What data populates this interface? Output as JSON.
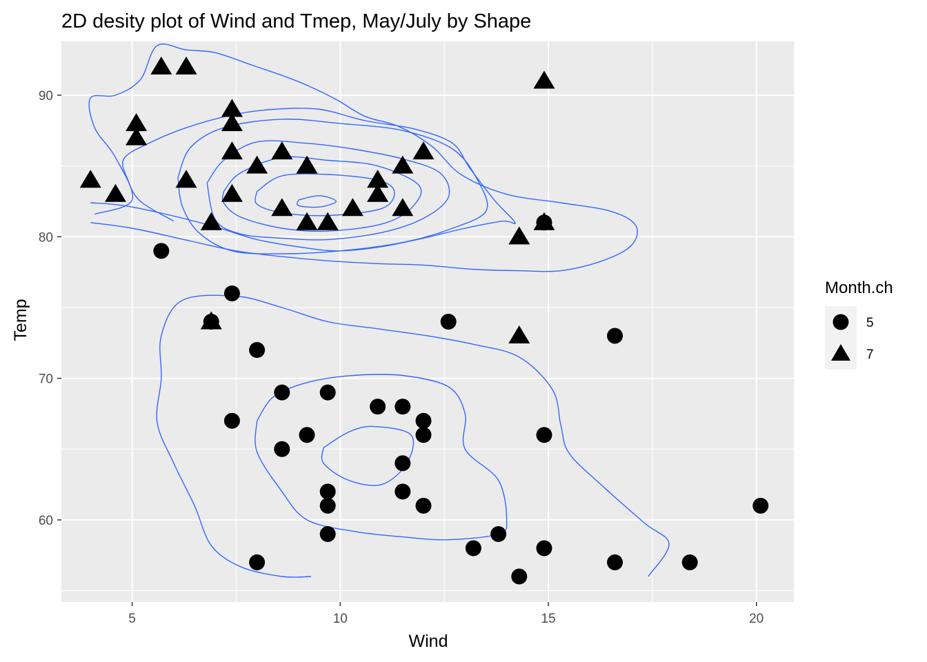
{
  "chart_data": {
    "type": "scatter",
    "title": "2D desity plot of Wind and Tmep, May/July by Shape",
    "xlabel": "Wind",
    "ylabel": "Temp",
    "xlim": [
      3.3,
      20.9
    ],
    "ylim": [
      54.2,
      93.8
    ],
    "x_ticks": [
      5,
      10,
      15,
      20
    ],
    "y_ticks": [
      60,
      70,
      80,
      90
    ],
    "x_tick_labels": [
      "5",
      "10",
      "15",
      "20"
    ],
    "y_tick_labels": [
      "60",
      "70",
      "80",
      "90"
    ],
    "grid": true,
    "background": "#ebebeb",
    "contour_color": "#3366ff",
    "point_color": "#000000",
    "legend": {
      "title": "Month.ch",
      "position": "right",
      "entries": [
        {
          "label": "5",
          "shape": "circle"
        },
        {
          "label": "7",
          "shape": "triangle"
        }
      ]
    },
    "series": [
      {
        "name": "5",
        "shape": "circle",
        "points": [
          [
            5.7,
            79
          ],
          [
            7.4,
            76
          ],
          [
            6.9,
            74
          ],
          [
            8.0,
            72
          ],
          [
            12.6,
            74
          ],
          [
            16.6,
            73
          ],
          [
            8.6,
            69
          ],
          [
            9.7,
            69
          ],
          [
            10.9,
            68
          ],
          [
            11.5,
            68
          ],
          [
            7.4,
            67
          ],
          [
            12.0,
            67
          ],
          [
            9.2,
            66
          ],
          [
            12.0,
            66
          ],
          [
            14.9,
            66
          ],
          [
            8.6,
            65
          ],
          [
            11.5,
            64
          ],
          [
            9.7,
            62
          ],
          [
            11.5,
            62
          ],
          [
            9.7,
            61
          ],
          [
            12.0,
            61
          ],
          [
            20.1,
            61
          ],
          [
            9.7,
            59
          ],
          [
            13.8,
            59
          ],
          [
            13.2,
            58
          ],
          [
            14.9,
            58
          ],
          [
            8.0,
            57
          ],
          [
            16.6,
            57
          ],
          [
            18.4,
            57
          ],
          [
            14.3,
            56
          ],
          [
            14.9,
            81
          ]
        ]
      },
      {
        "name": "7",
        "shape": "triangle",
        "points": [
          [
            5.7,
            92
          ],
          [
            6.3,
            92
          ],
          [
            14.9,
            91
          ],
          [
            7.4,
            89
          ],
          [
            5.1,
            88
          ],
          [
            7.4,
            88
          ],
          [
            5.1,
            87
          ],
          [
            7.4,
            86
          ],
          [
            8.6,
            86
          ],
          [
            12.0,
            86
          ],
          [
            8.0,
            85
          ],
          [
            9.2,
            85
          ],
          [
            11.5,
            85
          ],
          [
            4.0,
            84
          ],
          [
            6.3,
            84
          ],
          [
            10.9,
            84
          ],
          [
            4.6,
            83
          ],
          [
            7.4,
            83
          ],
          [
            10.9,
            83
          ],
          [
            8.6,
            82
          ],
          [
            10.3,
            82
          ],
          [
            11.5,
            82
          ],
          [
            6.9,
            81
          ],
          [
            9.2,
            81
          ],
          [
            9.7,
            81
          ],
          [
            14.9,
            81
          ],
          [
            14.3,
            80
          ],
          [
            6.9,
            74
          ],
          [
            14.3,
            73
          ]
        ]
      }
    ],
    "density_contours": [
      [
        [
          9.0,
          82.6
        ],
        [
          9.5,
          82.9
        ],
        [
          9.9,
          82.5
        ],
        [
          9.5,
          82.1
        ],
        [
          9.0,
          82.2
        ],
        [
          9.0,
          82.6
        ]
      ],
      [
        [
          8.0,
          83.2
        ],
        [
          8.6,
          84.3
        ],
        [
          9.7,
          84.4
        ],
        [
          10.9,
          84.0
        ],
        [
          11.3,
          83.2
        ],
        [
          11.0,
          82.0
        ],
        [
          9.7,
          81.5
        ],
        [
          8.6,
          81.7
        ],
        [
          8.0,
          82.3
        ],
        [
          8.0,
          83.2
        ]
      ],
      [
        [
          7.2,
          83.2
        ],
        [
          7.6,
          84.5
        ],
        [
          8.6,
          85.6
        ],
        [
          9.7,
          85.4
        ],
        [
          10.9,
          85.0
        ],
        [
          11.9,
          83.6
        ],
        [
          11.7,
          82.0
        ],
        [
          11.0,
          80.9
        ],
        [
          9.7,
          80.4
        ],
        [
          8.6,
          80.6
        ],
        [
          7.6,
          81.4
        ],
        [
          7.2,
          82.4
        ],
        [
          7.2,
          83.2
        ]
      ],
      [
        [
          6.8,
          83.8
        ],
        [
          7.2,
          85.4
        ],
        [
          8.0,
          86.7
        ],
        [
          9.2,
          86.6
        ],
        [
          10.3,
          86.2
        ],
        [
          11.5,
          85.5
        ],
        [
          12.4,
          84.5
        ],
        [
          12.6,
          82.8
        ],
        [
          12.0,
          81.3
        ],
        [
          11.0,
          80.3
        ],
        [
          9.7,
          79.8
        ],
        [
          8.6,
          79.9
        ],
        [
          7.6,
          80.2
        ],
        [
          7.0,
          81.2
        ],
        [
          6.8,
          83.8
        ]
      ],
      [
        [
          6.1,
          84.2
        ],
        [
          6.4,
          86.3
        ],
        [
          7.2,
          87.7
        ],
        [
          8.6,
          88.3
        ],
        [
          10.0,
          88.0
        ],
        [
          11.5,
          87.5
        ],
        [
          12.7,
          86.2
        ],
        [
          13.3,
          84.0
        ],
        [
          13.5,
          81.8
        ],
        [
          12.6,
          80.5
        ],
        [
          11.5,
          79.6
        ],
        [
          10.0,
          79.0
        ],
        [
          8.6,
          78.8
        ],
        [
          7.4,
          79.0
        ],
        [
          6.6,
          80.3
        ],
        [
          6.2,
          82.2
        ],
        [
          6.1,
          84.2
        ]
      ],
      [
        [
          4.0,
          82.4
        ],
        [
          4.8,
          82.2
        ],
        [
          5.8,
          81.6
        ],
        [
          7.0,
          80.7
        ],
        [
          8.0,
          79.8
        ],
        [
          9.2,
          79.2
        ],
        [
          10.0,
          79.0
        ],
        [
          11.0,
          79.3
        ],
        [
          12.0,
          79.9
        ],
        [
          13.0,
          80.6
        ],
        [
          13.9,
          81.1
        ],
        [
          14.2,
          81.0
        ],
        [
          13.7,
          82.6
        ],
        [
          13.1,
          84.9
        ],
        [
          12.7,
          86.6
        ],
        [
          11.8,
          87.6
        ],
        [
          10.6,
          88.2
        ],
        [
          9.5,
          89.0
        ],
        [
          8.4,
          89.0
        ],
        [
          7.4,
          88.6
        ],
        [
          6.3,
          87.7
        ],
        [
          5.4,
          86.6
        ],
        [
          4.8,
          85.5
        ],
        [
          4.9,
          84.0
        ],
        [
          5.2,
          82.5
        ],
        [
          6.0,
          81.1
        ]
      ],
      [
        [
          4.0,
          81.0
        ],
        [
          5.0,
          80.6
        ],
        [
          6.4,
          79.7
        ],
        [
          7.5,
          79.0
        ],
        [
          8.6,
          78.6
        ],
        [
          9.7,
          78.3
        ],
        [
          10.9,
          78.1
        ],
        [
          12.0,
          78.0
        ],
        [
          13.2,
          77.7
        ],
        [
          14.3,
          77.6
        ],
        [
          15.3,
          77.6
        ],
        [
          16.3,
          78.3
        ],
        [
          17.0,
          79.4
        ],
        [
          17.1,
          80.8
        ],
        [
          16.5,
          81.8
        ],
        [
          15.3,
          82.4
        ],
        [
          14.0,
          83.0
        ],
        [
          12.9,
          84.4
        ],
        [
          12.2,
          86.4
        ],
        [
          11.4,
          87.8
        ],
        [
          10.6,
          88.5
        ],
        [
          9.9,
          89.7
        ],
        [
          9.2,
          90.7
        ],
        [
          8.6,
          91.4
        ],
        [
          7.9,
          92.1
        ],
        [
          7.0,
          93.0
        ],
        [
          6.3,
          93.2
        ],
        [
          5.6,
          93.5
        ],
        [
          5.2,
          91.1
        ],
        [
          4.6,
          90.0
        ],
        [
          4.0,
          89.8
        ],
        [
          4.1,
          87.7
        ],
        [
          4.6,
          85.6
        ],
        [
          5.0,
          82.6
        ],
        [
          4.1,
          81.6
        ]
      ],
      [
        [
          9.6,
          65.1
        ],
        [
          10.2,
          66.2
        ],
        [
          10.8,
          66.6
        ],
        [
          11.7,
          66.0
        ],
        [
          11.6,
          64.0
        ],
        [
          11.0,
          62.5
        ],
        [
          10.2,
          62.8
        ],
        [
          9.6,
          64.0
        ],
        [
          9.6,
          65.1
        ]
      ],
      [
        [
          8.0,
          67.0
        ],
        [
          8.4,
          68.7
        ],
        [
          9.2,
          69.7
        ],
        [
          10.3,
          70.2
        ],
        [
          11.5,
          70.2
        ],
        [
          12.6,
          69.4
        ],
        [
          13.0,
          67.5
        ],
        [
          13.0,
          65.0
        ],
        [
          13.8,
          62.8
        ],
        [
          14.0,
          60.0
        ],
        [
          13.8,
          59.0
        ],
        [
          12.6,
          58.6
        ],
        [
          11.5,
          58.8
        ],
        [
          10.3,
          59.2
        ],
        [
          9.2,
          60.0
        ],
        [
          8.6,
          62.0
        ],
        [
          8.0,
          64.8
        ],
        [
          8.0,
          67.0
        ]
      ],
      [
        [
          9.3,
          56.0
        ],
        [
          8.6,
          56.0
        ],
        [
          7.6,
          56.7
        ],
        [
          6.9,
          58.2
        ],
        [
          6.5,
          61.0
        ],
        [
          6.0,
          64.0
        ],
        [
          5.6,
          66.9
        ],
        [
          5.7,
          70.0
        ],
        [
          5.7,
          73.0
        ],
        [
          6.2,
          75.5
        ],
        [
          7.5,
          75.8
        ],
        [
          8.6,
          75.0
        ],
        [
          9.7,
          74.0
        ],
        [
          10.9,
          73.5
        ],
        [
          12.1,
          73.0
        ],
        [
          13.2,
          72.4
        ],
        [
          14.3,
          71.5
        ],
        [
          15.1,
          69.2
        ],
        [
          15.3,
          66.7
        ],
        [
          15.5,
          64.7
        ],
        [
          16.3,
          62.4
        ],
        [
          17.3,
          59.8
        ],
        [
          17.9,
          58.3
        ],
        [
          17.4,
          56.0
        ]
      ]
    ]
  }
}
